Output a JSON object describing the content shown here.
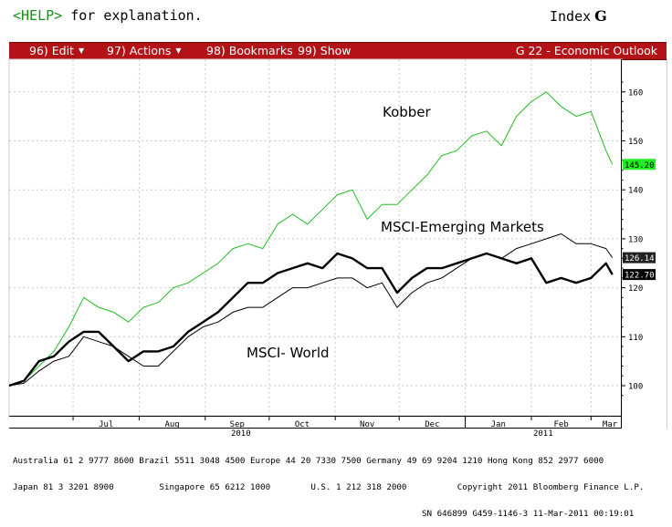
{
  "header": {
    "help_key": "<HELP>",
    "help_text": "for explanation.",
    "index_label": "Index",
    "index_key": "G"
  },
  "menubar": {
    "items": [
      {
        "label": "96) Edit",
        "has_dropdown": true
      },
      {
        "label": "97) Actions",
        "has_dropdown": true
      },
      {
        "label": "98) Bookmarks",
        "has_dropdown": false
      },
      {
        "label": "99) Show",
        "has_dropdown": false
      }
    ],
    "title": "G 22 - Economic Outlook"
  },
  "chart_data": {
    "type": "line",
    "title": "",
    "ylim": [
      95,
      165
    ],
    "y_ticks": [
      "100",
      "110",
      "120",
      "130",
      "140",
      "150",
      "160"
    ],
    "x_month_labels": [
      "Jul",
      "Aug",
      "Sep",
      "Oct",
      "Nov",
      "Dec",
      "Jan",
      "Feb",
      "Mar"
    ],
    "x_year_labels": [
      "2010",
      "2011"
    ],
    "grid": true,
    "series": [
      {
        "name": "Kobber",
        "color": "#22bb22",
        "last_value_label": "145.20",
        "x": [
          "2010-06-01",
          "2010-06-08",
          "2010-06-15",
          "2010-06-22",
          "2010-06-29",
          "2010-07-06",
          "2010-07-13",
          "2010-07-20",
          "2010-07-27",
          "2010-08-03",
          "2010-08-10",
          "2010-08-17",
          "2010-08-24",
          "2010-08-31",
          "2010-09-07",
          "2010-09-14",
          "2010-09-21",
          "2010-09-28",
          "2010-10-05",
          "2010-10-12",
          "2010-10-19",
          "2010-10-26",
          "2010-11-02",
          "2010-11-09",
          "2010-11-16",
          "2010-11-23",
          "2010-11-30",
          "2010-12-07",
          "2010-12-14",
          "2010-12-21",
          "2010-12-28",
          "2011-01-04",
          "2011-01-11",
          "2011-01-18",
          "2011-01-25",
          "2011-02-01",
          "2011-02-08",
          "2011-02-15",
          "2011-02-22",
          "2011-03-01",
          "2011-03-08",
          "2011-03-11"
        ],
        "values": [
          100,
          101,
          104,
          107,
          112,
          118,
          116,
          115,
          113,
          116,
          117,
          120,
          121,
          123,
          125,
          128,
          129,
          128,
          133,
          135,
          133,
          136,
          139,
          140,
          134,
          137,
          137,
          140,
          143,
          147,
          148,
          151,
          152,
          149,
          155,
          158,
          160,
          157,
          155,
          156,
          148,
          145.2
        ]
      },
      {
        "name": "MSCI-Emerging Markets",
        "color": "#000000",
        "last_value_label": "126.14",
        "x": [
          "2010-06-01",
          "2010-06-08",
          "2010-06-15",
          "2010-06-22",
          "2010-06-29",
          "2010-07-06",
          "2010-07-13",
          "2010-07-20",
          "2010-07-27",
          "2010-08-03",
          "2010-08-10",
          "2010-08-17",
          "2010-08-24",
          "2010-08-31",
          "2010-09-07",
          "2010-09-14",
          "2010-09-21",
          "2010-09-28",
          "2010-10-05",
          "2010-10-12",
          "2010-10-19",
          "2010-10-26",
          "2010-11-02",
          "2010-11-09",
          "2010-11-16",
          "2010-11-23",
          "2010-11-30",
          "2010-12-07",
          "2010-12-14",
          "2010-12-21",
          "2010-12-28",
          "2011-01-04",
          "2011-01-11",
          "2011-01-18",
          "2011-01-25",
          "2011-02-01",
          "2011-02-08",
          "2011-02-15",
          "2011-02-22",
          "2011-03-01",
          "2011-03-08",
          "2011-03-11"
        ],
        "values": [
          100,
          100.5,
          103,
          105,
          106,
          110,
          109,
          108,
          106,
          104,
          104,
          107,
          110,
          112,
          113,
          115,
          116,
          116,
          118,
          120,
          120,
          121,
          122,
          122,
          120,
          121,
          116,
          119,
          121,
          122,
          124,
          126,
          127,
          126,
          128,
          129,
          130,
          131,
          129,
          129,
          128,
          126.14
        ]
      },
      {
        "name": "MSCI- World",
        "color": "#000000",
        "last_value_label": "122.70",
        "x": [
          "2010-06-01",
          "2010-06-08",
          "2010-06-15",
          "2010-06-22",
          "2010-06-29",
          "2010-07-06",
          "2010-07-13",
          "2010-07-20",
          "2010-07-27",
          "2010-08-03",
          "2010-08-10",
          "2010-08-17",
          "2010-08-24",
          "2010-08-31",
          "2010-09-07",
          "2010-09-14",
          "2010-09-21",
          "2010-09-28",
          "2010-10-05",
          "2010-10-12",
          "2010-10-19",
          "2010-10-26",
          "2010-11-02",
          "2010-11-09",
          "2010-11-16",
          "2010-11-23",
          "2010-11-30",
          "2010-12-07",
          "2010-12-14",
          "2010-12-21",
          "2010-12-28",
          "2011-01-04",
          "2011-01-11",
          "2011-01-18",
          "2011-01-25",
          "2011-02-01",
          "2011-02-08",
          "2011-02-15",
          "2011-02-22",
          "2011-03-01",
          "2011-03-08",
          "2011-03-11"
        ],
        "values": [
          100,
          101,
          105,
          106,
          109,
          111,
          111,
          108,
          105,
          107,
          107,
          108,
          111,
          113,
          115,
          118,
          121,
          121,
          123,
          124,
          125,
          124,
          127,
          126,
          124,
          124,
          119,
          122,
          124,
          124,
          125,
          126,
          127,
          126,
          125,
          126,
          121,
          122,
          121,
          122,
          125,
          122.7
        ]
      }
    ]
  },
  "footer": {
    "line1": "Australia 61 2 9777 8600 Brazil 5511 3048 4500 Europe 44 20 7330 7500 Germany 49 69 9204 1210 Hong Kong 852 2977 6000",
    "line2": "Japan 81 3 3201 8900         Singapore 65 6212 1000        U.S. 1 212 318 2000          Copyright 2011 Bloomberg Finance L.P.",
    "line3": "SN 646899 G459-1146-3 11-Mar-2011 00:19:01"
  }
}
